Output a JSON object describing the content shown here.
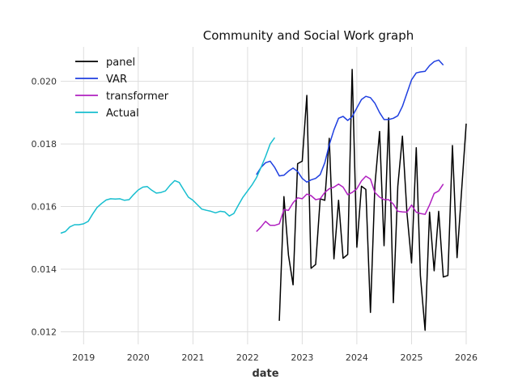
{
  "chart_data": {
    "type": "line",
    "title": "Community and Social Work graph",
    "xlabel": "date",
    "ylabel": "",
    "xlim": [
      "2018-08-01",
      "2026-01-01"
    ],
    "ylim": [
      0.0116,
      0.0211
    ],
    "x_ticks": [
      {
        "label": "2019",
        "date": "2019-01-01"
      },
      {
        "label": "2020",
        "date": "2020-01-01"
      },
      {
        "label": "2021",
        "date": "2021-01-01"
      },
      {
        "label": "2022",
        "date": "2022-01-01"
      },
      {
        "label": "2023",
        "date": "2023-01-01"
      },
      {
        "label": "2024",
        "date": "2024-01-01"
      },
      {
        "label": "2025",
        "date": "2025-01-01"
      },
      {
        "label": "2026",
        "date": "2026-01-01"
      }
    ],
    "y_ticks": [
      {
        "label": "0.012",
        "value": 0.012
      },
      {
        "label": "0.014",
        "value": 0.014
      },
      {
        "label": "0.016",
        "value": 0.016
      },
      {
        "label": "0.018",
        "value": 0.018
      },
      {
        "label": "0.020",
        "value": 0.02
      }
    ],
    "grid": true,
    "legend_position": "top-left",
    "series": [
      {
        "name": "panel",
        "color": "#000000",
        "points": [
          [
            "2022-08-01",
            0.01235
          ],
          [
            "2022-09-01",
            0.01632
          ],
          [
            "2022-10-01",
            0.01445
          ],
          [
            "2022-11-01",
            0.0135
          ],
          [
            "2022-12-01",
            0.01737
          ],
          [
            "2023-01-01",
            0.01745
          ],
          [
            "2023-02-01",
            0.01955
          ],
          [
            "2023-03-01",
            0.01403
          ],
          [
            "2023-04-01",
            0.01415
          ],
          [
            "2023-05-01",
            0.01625
          ],
          [
            "2023-06-01",
            0.0162
          ],
          [
            "2023-07-01",
            0.01818
          ],
          [
            "2023-08-01",
            0.01433
          ],
          [
            "2023-09-01",
            0.0162
          ],
          [
            "2023-10-01",
            0.01435
          ],
          [
            "2023-11-01",
            0.01447
          ],
          [
            "2023-12-01",
            0.02038
          ],
          [
            "2024-01-01",
            0.0147
          ],
          [
            "2024-02-01",
            0.01665
          ],
          [
            "2024-03-01",
            0.01655
          ],
          [
            "2024-04-01",
            0.01262
          ],
          [
            "2024-05-01",
            0.01668
          ],
          [
            "2024-06-01",
            0.0184
          ],
          [
            "2024-07-01",
            0.01475
          ],
          [
            "2024-08-01",
            0.01883
          ],
          [
            "2024-09-01",
            0.01293
          ],
          [
            "2024-10-01",
            0.01665
          ],
          [
            "2024-11-01",
            0.01825
          ],
          [
            "2024-12-01",
            0.0158
          ],
          [
            "2025-01-01",
            0.0142
          ],
          [
            "2025-02-01",
            0.01788
          ],
          [
            "2025-03-01",
            0.0138
          ],
          [
            "2025-04-01",
            0.01205
          ],
          [
            "2025-05-01",
            0.01582
          ],
          [
            "2025-06-01",
            0.01395
          ],
          [
            "2025-07-01",
            0.01585
          ],
          [
            "2025-08-01",
            0.01375
          ],
          [
            "2025-09-01",
            0.0138
          ],
          [
            "2025-10-01",
            0.01795
          ],
          [
            "2025-11-01",
            0.01437
          ],
          [
            "2025-12-01",
            0.0165
          ],
          [
            "2026-01-01",
            0.01865
          ]
        ]
      },
      {
        "name": "VAR",
        "color": "#1f3fe0",
        "points": [
          [
            "2022-03-01",
            0.01702
          ],
          [
            "2022-04-01",
            0.01725
          ],
          [
            "2022-05-01",
            0.0174
          ],
          [
            "2022-06-01",
            0.01745
          ],
          [
            "2022-07-01",
            0.01725
          ],
          [
            "2022-08-01",
            0.01698
          ],
          [
            "2022-09-01",
            0.017
          ],
          [
            "2022-10-01",
            0.01713
          ],
          [
            "2022-11-01",
            0.01723
          ],
          [
            "2022-12-01",
            0.01712
          ],
          [
            "2023-01-01",
            0.0169
          ],
          [
            "2023-02-01",
            0.01678
          ],
          [
            "2023-03-01",
            0.01685
          ],
          [
            "2023-04-01",
            0.0169
          ],
          [
            "2023-05-01",
            0.01702
          ],
          [
            "2023-06-01",
            0.0174
          ],
          [
            "2023-07-01",
            0.01797
          ],
          [
            "2023-08-01",
            0.01845
          ],
          [
            "2023-09-01",
            0.01882
          ],
          [
            "2023-10-01",
            0.01888
          ],
          [
            "2023-11-01",
            0.01875
          ],
          [
            "2023-12-01",
            0.01887
          ],
          [
            "2024-01-01",
            0.01915
          ],
          [
            "2024-02-01",
            0.01942
          ],
          [
            "2024-03-01",
            0.01952
          ],
          [
            "2024-04-01",
            0.01948
          ],
          [
            "2024-05-01",
            0.0193
          ],
          [
            "2024-06-01",
            0.019
          ],
          [
            "2024-07-01",
            0.01878
          ],
          [
            "2024-08-01",
            0.01878
          ],
          [
            "2024-09-01",
            0.01882
          ],
          [
            "2024-10-01",
            0.0189
          ],
          [
            "2024-11-01",
            0.0192
          ],
          [
            "2024-12-01",
            0.01962
          ],
          [
            "2025-01-01",
            0.02005
          ],
          [
            "2025-02-01",
            0.02027
          ],
          [
            "2025-03-01",
            0.0203
          ],
          [
            "2025-04-01",
            0.02032
          ],
          [
            "2025-05-01",
            0.0205
          ],
          [
            "2025-06-01",
            0.02063
          ],
          [
            "2025-07-01",
            0.02068
          ],
          [
            "2025-08-01",
            0.02052
          ]
        ]
      },
      {
        "name": "transformer",
        "color": "#b020c0",
        "points": [
          [
            "2022-03-01",
            0.0152
          ],
          [
            "2022-04-01",
            0.01535
          ],
          [
            "2022-05-01",
            0.01553
          ],
          [
            "2022-06-01",
            0.0154
          ],
          [
            "2022-07-01",
            0.0154
          ],
          [
            "2022-08-01",
            0.01545
          ],
          [
            "2022-09-01",
            0.0159
          ],
          [
            "2022-10-01",
            0.01588
          ],
          [
            "2022-11-01",
            0.01612
          ],
          [
            "2022-12-01",
            0.01628
          ],
          [
            "2023-01-01",
            0.01625
          ],
          [
            "2023-02-01",
            0.0164
          ],
          [
            "2023-03-01",
            0.01635
          ],
          [
            "2023-04-01",
            0.01622
          ],
          [
            "2023-05-01",
            0.01625
          ],
          [
            "2023-06-01",
            0.01645
          ],
          [
            "2023-07-01",
            0.01657
          ],
          [
            "2023-08-01",
            0.01662
          ],
          [
            "2023-09-01",
            0.01672
          ],
          [
            "2023-10-01",
            0.01662
          ],
          [
            "2023-11-01",
            0.01638
          ],
          [
            "2023-12-01",
            0.01645
          ],
          [
            "2024-01-01",
            0.01657
          ],
          [
            "2024-02-01",
            0.01682
          ],
          [
            "2024-03-01",
            0.01697
          ],
          [
            "2024-04-01",
            0.01688
          ],
          [
            "2024-05-01",
            0.01645
          ],
          [
            "2024-06-01",
            0.0163
          ],
          [
            "2024-07-01",
            0.01622
          ],
          [
            "2024-08-01",
            0.01622
          ],
          [
            "2024-09-01",
            0.01608
          ],
          [
            "2024-10-01",
            0.01585
          ],
          [
            "2024-11-01",
            0.01583
          ],
          [
            "2024-12-01",
            0.01582
          ],
          [
            "2025-01-01",
            0.01605
          ],
          [
            "2025-02-01",
            0.01582
          ],
          [
            "2025-03-01",
            0.01578
          ],
          [
            "2025-04-01",
            0.01575
          ],
          [
            "2025-05-01",
            0.01605
          ],
          [
            "2025-06-01",
            0.01642
          ],
          [
            "2025-07-01",
            0.0165
          ],
          [
            "2025-08-01",
            0.01672
          ]
        ]
      },
      {
        "name": "Actual",
        "color": "#17becf",
        "points": [
          [
            "2018-08-01",
            0.01515
          ],
          [
            "2018-09-01",
            0.0152
          ],
          [
            "2018-10-01",
            0.01535
          ],
          [
            "2018-11-01",
            0.01542
          ],
          [
            "2018-12-01",
            0.01542
          ],
          [
            "2019-01-01",
            0.01545
          ],
          [
            "2019-02-01",
            0.01553
          ],
          [
            "2019-03-01",
            0.01575
          ],
          [
            "2019-04-01",
            0.01597
          ],
          [
            "2019-05-01",
            0.0161
          ],
          [
            "2019-06-01",
            0.01621
          ],
          [
            "2019-07-01",
            0.01625
          ],
          [
            "2019-08-01",
            0.01624
          ],
          [
            "2019-09-01",
            0.01625
          ],
          [
            "2019-10-01",
            0.0162
          ],
          [
            "2019-11-01",
            0.01622
          ],
          [
            "2019-12-01",
            0.01638
          ],
          [
            "2020-01-01",
            0.01653
          ],
          [
            "2020-02-01",
            0.01662
          ],
          [
            "2020-03-01",
            0.01664
          ],
          [
            "2020-04-01",
            0.01652
          ],
          [
            "2020-05-01",
            0.01643
          ],
          [
            "2020-06-01",
            0.01645
          ],
          [
            "2020-07-01",
            0.0165
          ],
          [
            "2020-08-01",
            0.01668
          ],
          [
            "2020-09-01",
            0.01683
          ],
          [
            "2020-10-01",
            0.01677
          ],
          [
            "2020-11-01",
            0.01653
          ],
          [
            "2020-12-01",
            0.0163
          ],
          [
            "2021-01-01",
            0.0162
          ],
          [
            "2021-02-01",
            0.01605
          ],
          [
            "2021-03-01",
            0.01592
          ],
          [
            "2021-04-01",
            0.01588
          ],
          [
            "2021-05-01",
            0.01585
          ],
          [
            "2021-06-01",
            0.0158
          ],
          [
            "2021-07-01",
            0.01585
          ],
          [
            "2021-08-01",
            0.01583
          ],
          [
            "2021-09-01",
            0.0157
          ],
          [
            "2021-10-01",
            0.01578
          ],
          [
            "2021-11-01",
            0.01605
          ],
          [
            "2021-12-01",
            0.0163
          ],
          [
            "2022-01-01",
            0.0165
          ],
          [
            "2022-02-01",
            0.0167
          ],
          [
            "2022-03-01",
            0.01692
          ],
          [
            "2022-04-01",
            0.01725
          ],
          [
            "2022-05-01",
            0.0176
          ],
          [
            "2022-06-01",
            0.018
          ],
          [
            "2022-07-01",
            0.0182
          ]
        ]
      }
    ]
  }
}
